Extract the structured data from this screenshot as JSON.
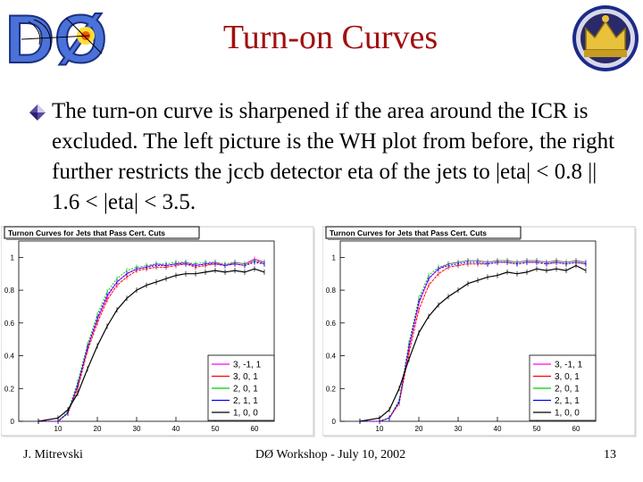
{
  "slide": {
    "title": "Turn-on Curves",
    "bullet": "The turn-on curve is sharpened if the area around the ICR is excluded. The left picture is the WH plot from before, the right further restricts the jccb detector eta of the jets to |eta| < 0.8 || 1.6 < |eta| < 3.5.",
    "logo_text": "DØ",
    "colors": {
      "title": "#a01010",
      "bullet": "#5b4aa0"
    }
  },
  "footer": {
    "left": "J. Mitrevski",
    "center": "DØ Workshop - July 10, 2002",
    "right": "13"
  },
  "chart_data": [
    {
      "type": "line",
      "title": "Turnon Curves for Jets that Pass Cert. Cuts",
      "xlim": [
        0,
        65
      ],
      "ylim": [
        0,
        1.1
      ],
      "xticks": [
        10,
        20,
        30,
        40,
        50,
        60
      ],
      "yticks": [
        0,
        0.2,
        0.4,
        0.6,
        0.8,
        1
      ],
      "legend_position": "bottom-right",
      "x": [
        5,
        10,
        12.5,
        15,
        17.5,
        20,
        22.5,
        25,
        27.5,
        30,
        32.5,
        35,
        37.5,
        40,
        42.5,
        45,
        47.5,
        50,
        52.5,
        55,
        57.5,
        60,
        62.5
      ],
      "series": [
        {
          "name": "3, -1, 1",
          "color": "#ff00ff",
          "values": [
            0,
            0,
            0.05,
            0.22,
            0.45,
            0.62,
            0.76,
            0.85,
            0.9,
            0.93,
            0.94,
            0.96,
            0.95,
            0.96,
            0.97,
            0.95,
            0.96,
            0.97,
            0.95,
            0.97,
            0.96,
            0.99,
            0.97
          ]
        },
        {
          "name": "3, 0, 1",
          "color": "#ff0000",
          "values": [
            0,
            0,
            0.05,
            0.2,
            0.43,
            0.6,
            0.74,
            0.83,
            0.88,
            0.92,
            0.93,
            0.94,
            0.94,
            0.95,
            0.96,
            0.94,
            0.95,
            0.96,
            0.95,
            0.96,
            0.95,
            0.98,
            0.96
          ]
        },
        {
          "name": "2, 0, 1",
          "color": "#00cc00",
          "values": [
            0,
            0,
            0.06,
            0.24,
            0.47,
            0.65,
            0.79,
            0.87,
            0.92,
            0.94,
            0.95,
            0.96,
            0.96,
            0.97,
            0.97,
            0.96,
            0.97,
            0.97,
            0.96,
            0.97,
            0.96,
            0.98,
            0.97
          ]
        },
        {
          "name": "2, 1, 1",
          "color": "#0000ff",
          "values": [
            0,
            0,
            0.05,
            0.22,
            0.45,
            0.63,
            0.77,
            0.85,
            0.9,
            0.93,
            0.94,
            0.95,
            0.95,
            0.96,
            0.96,
            0.95,
            0.96,
            0.96,
            0.95,
            0.96,
            0.95,
            0.97,
            0.96
          ]
        },
        {
          "name": "1, 0, 0",
          "color": "#000000",
          "values": [
            0,
            0.02,
            0.07,
            0.17,
            0.32,
            0.46,
            0.58,
            0.68,
            0.75,
            0.8,
            0.83,
            0.85,
            0.87,
            0.89,
            0.9,
            0.9,
            0.91,
            0.92,
            0.91,
            0.92,
            0.91,
            0.93,
            0.91
          ]
        }
      ]
    },
    {
      "type": "line",
      "title": "Turnon Curves for Jets that Pass Cert. Cuts",
      "xlim": [
        0,
        65
      ],
      "ylim": [
        0,
        1.1
      ],
      "xticks": [
        10,
        20,
        30,
        40,
        50,
        60
      ],
      "yticks": [
        0,
        0.2,
        0.4,
        0.6,
        0.8,
        1
      ],
      "legend_position": "bottom-right",
      "x": [
        5,
        10,
        12.5,
        15,
        17.5,
        20,
        22.5,
        25,
        27.5,
        30,
        32.5,
        35,
        37.5,
        40,
        42.5,
        45,
        47.5,
        50,
        52.5,
        55,
        57.5,
        60,
        62.5
      ],
      "series": [
        {
          "name": "3, -1, 1",
          "color": "#ff00ff",
          "values": [
            0,
            0,
            0.02,
            0.12,
            0.45,
            0.72,
            0.87,
            0.93,
            0.96,
            0.97,
            0.98,
            0.98,
            0.97,
            0.98,
            0.98,
            0.97,
            0.98,
            0.98,
            0.97,
            0.98,
            0.97,
            0.98,
            0.97
          ]
        },
        {
          "name": "3, 0, 1",
          "color": "#ff0000",
          "values": [
            0,
            0,
            0.02,
            0.11,
            0.42,
            0.68,
            0.83,
            0.9,
            0.94,
            0.95,
            0.96,
            0.96,
            0.96,
            0.97,
            0.97,
            0.96,
            0.97,
            0.97,
            0.96,
            0.97,
            0.96,
            0.97,
            0.96
          ]
        },
        {
          "name": "2, 0, 1",
          "color": "#00cc00",
          "values": [
            0,
            0,
            0.02,
            0.13,
            0.48,
            0.75,
            0.89,
            0.94,
            0.96,
            0.97,
            0.98,
            0.98,
            0.97,
            0.98,
            0.98,
            0.97,
            0.98,
            0.98,
            0.97,
            0.98,
            0.97,
            0.98,
            0.97
          ]
        },
        {
          "name": "2, 1, 1",
          "color": "#0000ff",
          "values": [
            0,
            0,
            0.02,
            0.12,
            0.46,
            0.73,
            0.87,
            0.93,
            0.95,
            0.96,
            0.97,
            0.97,
            0.96,
            0.97,
            0.97,
            0.96,
            0.97,
            0.97,
            0.96,
            0.97,
            0.96,
            0.97,
            0.96
          ]
        },
        {
          "name": "1, 0, 0",
          "color": "#000000",
          "values": [
            0,
            0.02,
            0.07,
            0.2,
            0.38,
            0.54,
            0.64,
            0.71,
            0.76,
            0.8,
            0.84,
            0.86,
            0.88,
            0.89,
            0.91,
            0.9,
            0.91,
            0.93,
            0.92,
            0.93,
            0.92,
            0.95,
            0.92
          ]
        }
      ]
    }
  ]
}
